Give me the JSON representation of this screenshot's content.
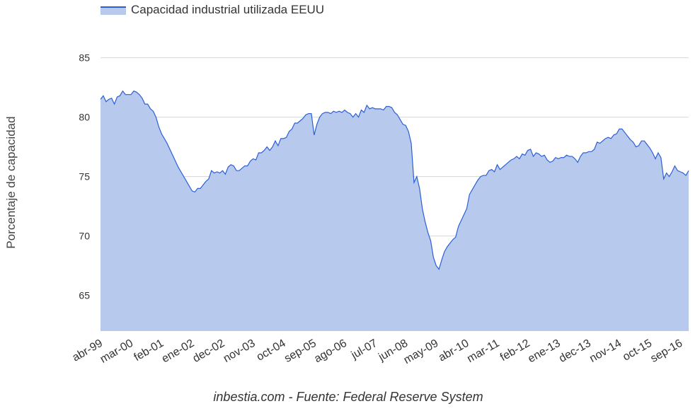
{
  "legend": {
    "label": "Capacidad industrial utilizada EEUU"
  },
  "footer": {
    "text": "inbestia.com - Fuente: Federal Reserve System"
  },
  "colors": {
    "line": "#2c5fd6",
    "fill": "#b7caee",
    "grid": "#c9d8f0",
    "text": "#333333"
  },
  "chart_data": {
    "type": "area",
    "title": "",
    "series": [
      {
        "name": "Capacidad industrial utilizada EEUU",
        "points": [
          [
            "1999-04",
            81.5
          ],
          [
            "1999-05",
            81.8
          ],
          [
            "1999-06",
            81.3
          ],
          [
            "1999-07",
            81.5
          ],
          [
            "1999-08",
            81.6
          ],
          [
            "1999-09",
            81.1
          ],
          [
            "1999-10",
            81.7
          ],
          [
            "1999-11",
            81.8
          ],
          [
            "1999-12",
            82.2
          ],
          [
            "2000-01",
            81.9
          ],
          [
            "2000-02",
            81.9
          ],
          [
            "2000-03",
            81.9
          ],
          [
            "2000-04",
            82.2
          ],
          [
            "2000-05",
            82.1
          ],
          [
            "2000-06",
            81.9
          ],
          [
            "2000-07",
            81.6
          ],
          [
            "2000-08",
            81.1
          ],
          [
            "2000-09",
            81.1
          ],
          [
            "2000-10",
            80.7
          ],
          [
            "2000-11",
            80.5
          ],
          [
            "2000-12",
            80.0
          ],
          [
            "2001-01",
            79.2
          ],
          [
            "2001-02",
            78.6
          ],
          [
            "2001-03",
            78.2
          ],
          [
            "2001-04",
            77.8
          ],
          [
            "2001-05",
            77.3
          ],
          [
            "2001-06",
            76.8
          ],
          [
            "2001-07",
            76.3
          ],
          [
            "2001-08",
            75.8
          ],
          [
            "2001-09",
            75.4
          ],
          [
            "2001-10",
            75.0
          ],
          [
            "2001-11",
            74.6
          ],
          [
            "2001-12",
            74.2
          ],
          [
            "2002-01",
            73.8
          ],
          [
            "2002-02",
            73.7
          ],
          [
            "2002-03",
            74.0
          ],
          [
            "2002-04",
            74.0
          ],
          [
            "2002-05",
            74.3
          ],
          [
            "2002-06",
            74.6
          ],
          [
            "2002-07",
            74.8
          ],
          [
            "2002-08",
            75.5
          ],
          [
            "2002-09",
            75.3
          ],
          [
            "2002-10",
            75.4
          ],
          [
            "2002-11",
            75.3
          ],
          [
            "2002-12",
            75.5
          ],
          [
            "2003-01",
            75.2
          ],
          [
            "2003-02",
            75.8
          ],
          [
            "2003-03",
            76.0
          ],
          [
            "2003-04",
            75.9
          ],
          [
            "2003-05",
            75.5
          ],
          [
            "2003-06",
            75.5
          ],
          [
            "2003-07",
            75.7
          ],
          [
            "2003-08",
            75.9
          ],
          [
            "2003-09",
            75.9
          ],
          [
            "2003-10",
            76.3
          ],
          [
            "2003-11",
            76.5
          ],
          [
            "2003-12",
            76.4
          ],
          [
            "2004-01",
            77.0
          ],
          [
            "2004-02",
            77.0
          ],
          [
            "2004-03",
            77.2
          ],
          [
            "2004-04",
            77.5
          ],
          [
            "2004-05",
            77.2
          ],
          [
            "2004-06",
            77.5
          ],
          [
            "2004-07",
            78.0
          ],
          [
            "2004-08",
            77.6
          ],
          [
            "2004-09",
            78.2
          ],
          [
            "2004-10",
            78.2
          ],
          [
            "2004-11",
            78.3
          ],
          [
            "2004-12",
            78.8
          ],
          [
            "2005-01",
            79.0
          ],
          [
            "2005-02",
            79.5
          ],
          [
            "2005-03",
            79.5
          ],
          [
            "2005-04",
            79.7
          ],
          [
            "2005-05",
            79.9
          ],
          [
            "2005-06",
            80.2
          ],
          [
            "2005-07",
            80.3
          ],
          [
            "2005-08",
            80.3
          ],
          [
            "2005-09",
            78.5
          ],
          [
            "2005-10",
            79.4
          ],
          [
            "2005-11",
            80.0
          ],
          [
            "2005-12",
            80.3
          ],
          [
            "2006-01",
            80.4
          ],
          [
            "2006-02",
            80.4
          ],
          [
            "2006-03",
            80.3
          ],
          [
            "2006-04",
            80.5
          ],
          [
            "2006-05",
            80.4
          ],
          [
            "2006-06",
            80.5
          ],
          [
            "2006-07",
            80.4
          ],
          [
            "2006-08",
            80.6
          ],
          [
            "2006-09",
            80.4
          ],
          [
            "2006-10",
            80.3
          ],
          [
            "2006-11",
            80.0
          ],
          [
            "2006-12",
            80.3
          ],
          [
            "2007-01",
            80.0
          ],
          [
            "2007-02",
            80.6
          ],
          [
            "2007-03",
            80.4
          ],
          [
            "2007-04",
            81.0
          ],
          [
            "2007-05",
            80.7
          ],
          [
            "2007-06",
            80.8
          ],
          [
            "2007-07",
            80.7
          ],
          [
            "2007-08",
            80.7
          ],
          [
            "2007-09",
            80.7
          ],
          [
            "2007-10",
            80.6
          ],
          [
            "2007-11",
            80.9
          ],
          [
            "2007-12",
            80.9
          ],
          [
            "2008-01",
            80.8
          ],
          [
            "2008-02",
            80.4
          ],
          [
            "2008-03",
            80.2
          ],
          [
            "2008-04",
            79.8
          ],
          [
            "2008-05",
            79.4
          ],
          [
            "2008-06",
            79.3
          ],
          [
            "2008-07",
            78.8
          ],
          [
            "2008-08",
            77.8
          ],
          [
            "2008-09",
            74.5
          ],
          [
            "2008-10",
            75.0
          ],
          [
            "2008-11",
            74.0
          ],
          [
            "2008-12",
            72.3
          ],
          [
            "2009-01",
            71.2
          ],
          [
            "2009-02",
            70.3
          ],
          [
            "2009-03",
            69.6
          ],
          [
            "2009-04",
            68.2
          ],
          [
            "2009-05",
            67.5
          ],
          [
            "2009-06",
            67.2
          ],
          [
            "2009-07",
            68.0
          ],
          [
            "2009-08",
            68.7
          ],
          [
            "2009-09",
            69.1
          ],
          [
            "2009-10",
            69.4
          ],
          [
            "2009-11",
            69.7
          ],
          [
            "2009-12",
            69.9
          ],
          [
            "2010-01",
            70.8
          ],
          [
            "2010-02",
            71.3
          ],
          [
            "2010-03",
            71.8
          ],
          [
            "2010-04",
            72.3
          ],
          [
            "2010-05",
            73.5
          ],
          [
            "2010-06",
            73.9
          ],
          [
            "2010-07",
            74.3
          ],
          [
            "2010-08",
            74.7
          ],
          [
            "2010-09",
            75.0
          ],
          [
            "2010-10",
            75.1
          ],
          [
            "2010-11",
            75.1
          ],
          [
            "2010-12",
            75.5
          ],
          [
            "2011-01",
            75.6
          ],
          [
            "2011-02",
            75.4
          ],
          [
            "2011-03",
            76.0
          ],
          [
            "2011-04",
            75.6
          ],
          [
            "2011-05",
            75.8
          ],
          [
            "2011-06",
            76.0
          ],
          [
            "2011-07",
            76.2
          ],
          [
            "2011-08",
            76.4
          ],
          [
            "2011-09",
            76.5
          ],
          [
            "2011-10",
            76.7
          ],
          [
            "2011-11",
            76.5
          ],
          [
            "2011-12",
            76.9
          ],
          [
            "2012-01",
            76.8
          ],
          [
            "2012-02",
            77.2
          ],
          [
            "2012-03",
            77.3
          ],
          [
            "2012-04",
            76.7
          ],
          [
            "2012-05",
            77.0
          ],
          [
            "2012-06",
            76.9
          ],
          [
            "2012-07",
            76.7
          ],
          [
            "2012-08",
            76.8
          ],
          [
            "2012-09",
            76.4
          ],
          [
            "2012-10",
            76.2
          ],
          [
            "2012-11",
            76.3
          ],
          [
            "2012-12",
            76.6
          ],
          [
            "2013-01",
            76.5
          ],
          [
            "2013-02",
            76.6
          ],
          [
            "2013-03",
            76.6
          ],
          [
            "2013-04",
            76.8
          ],
          [
            "2013-05",
            76.7
          ],
          [
            "2013-06",
            76.7
          ],
          [
            "2013-07",
            76.5
          ],
          [
            "2013-08",
            76.2
          ],
          [
            "2013-09",
            76.7
          ],
          [
            "2013-10",
            77.0
          ],
          [
            "2013-11",
            77.0
          ],
          [
            "2013-12",
            77.1
          ],
          [
            "2014-01",
            77.1
          ],
          [
            "2014-02",
            77.3
          ],
          [
            "2014-03",
            77.9
          ],
          [
            "2014-04",
            77.8
          ],
          [
            "2014-05",
            78.0
          ],
          [
            "2014-06",
            78.2
          ],
          [
            "2014-07",
            78.3
          ],
          [
            "2014-08",
            78.2
          ],
          [
            "2014-09",
            78.5
          ],
          [
            "2014-10",
            78.6
          ],
          [
            "2014-11",
            79.0
          ],
          [
            "2014-12",
            79.0
          ],
          [
            "2015-01",
            78.7
          ],
          [
            "2015-02",
            78.4
          ],
          [
            "2015-03",
            78.1
          ],
          [
            "2015-04",
            77.9
          ],
          [
            "2015-05",
            77.5
          ],
          [
            "2015-06",
            77.6
          ],
          [
            "2015-07",
            78.0
          ],
          [
            "2015-08",
            78.0
          ],
          [
            "2015-09",
            77.7
          ],
          [
            "2015-10",
            77.4
          ],
          [
            "2015-11",
            77.0
          ],
          [
            "2015-12",
            76.5
          ],
          [
            "2016-01",
            77.0
          ],
          [
            "2016-02",
            76.6
          ],
          [
            "2016-03",
            74.8
          ],
          [
            "2016-04",
            75.3
          ],
          [
            "2016-05",
            75.0
          ],
          [
            "2016-06",
            75.4
          ],
          [
            "2016-07",
            75.9
          ],
          [
            "2016-08",
            75.5
          ],
          [
            "2016-09",
            75.4
          ],
          [
            "2016-10",
            75.3
          ],
          [
            "2016-11",
            75.1
          ],
          [
            "2016-12",
            75.5
          ]
        ]
      }
    ],
    "ylabel": "Porcentaje de capacidad",
    "xlabel": "",
    "ylim": [
      62,
      87
    ],
    "xlim": [
      "1999-04",
      "2016-12"
    ],
    "yticks": [
      65,
      70,
      75,
      80,
      85
    ],
    "xticks": [
      {
        "label": "abr-99",
        "date": "1999-04"
      },
      {
        "label": "mar-00",
        "date": "2000-03"
      },
      {
        "label": "feb-01",
        "date": "2001-02"
      },
      {
        "label": "ene-02",
        "date": "2002-01"
      },
      {
        "label": "dec-02",
        "date": "2002-12"
      },
      {
        "label": "nov-03",
        "date": "2003-11"
      },
      {
        "label": "oct-04",
        "date": "2004-10"
      },
      {
        "label": "sep-05",
        "date": "2005-09"
      },
      {
        "label": "ago-06",
        "date": "2006-08"
      },
      {
        "label": "jul-07",
        "date": "2007-07"
      },
      {
        "label": "jun-08",
        "date": "2008-06"
      },
      {
        "label": "may-09",
        "date": "2009-05"
      },
      {
        "label": "abr-10",
        "date": "2010-04"
      },
      {
        "label": "mar-11",
        "date": "2011-03"
      },
      {
        "label": "feb-12",
        "date": "2012-02"
      },
      {
        "label": "ene-13",
        "date": "2013-01"
      },
      {
        "label": "dec-13",
        "date": "2013-12"
      },
      {
        "label": "nov-14",
        "date": "2014-11"
      },
      {
        "label": "oct-15",
        "date": "2015-10"
      },
      {
        "label": "sep-16",
        "date": "2016-09"
      }
    ],
    "grid": true,
    "legend": "top-left"
  }
}
